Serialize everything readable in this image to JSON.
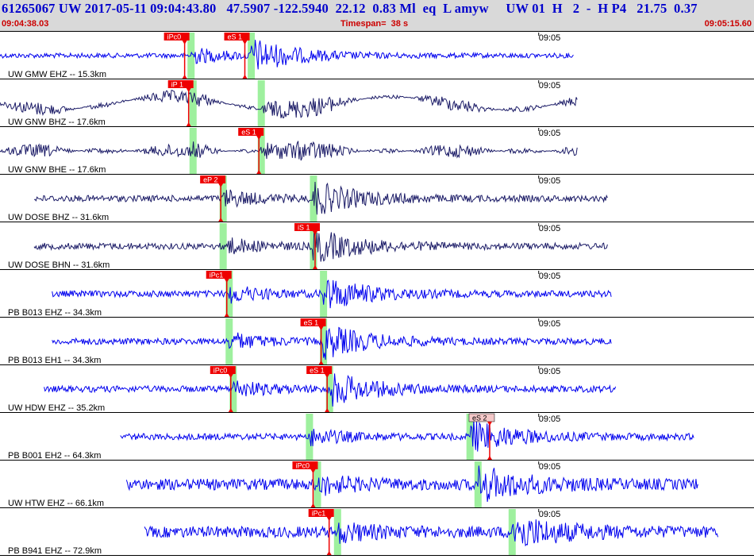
{
  "header": {
    "title": "61265067 UW 2017-05-11 09:04:43.80   47.5907 -122.5940  22.12  0.83 Ml  eq  L amyw     UW 01  H   2  -  H P4   21.75  0.37",
    "start_time": "09:04:38.03",
    "timespan": "Timespan=  38 s",
    "end_time": "09:05:15.60"
  },
  "colors": {
    "trace_blue": "#0000ee",
    "trace_navy": "#1a1a66",
    "pick_red": "#ee0000",
    "pick_band": "#9ef09e",
    "title_blue": "#0000cc",
    "time_red": "#cc0000"
  },
  "traces": [
    {
      "label": "UW GMW EHZ -- 15.3km",
      "color": "blue",
      "minute": "09:05",
      "data_start_sec": 0.0,
      "data_end_sec": 28.6,
      "amp": "high",
      "bands": [
        9.5,
        12.5
      ],
      "picks": [
        {
          "label": "iPc0",
          "sec": 9.2,
          "style": "red"
        },
        {
          "label": "eS 1",
          "sec": 12.2,
          "style": "red"
        }
      ]
    },
    {
      "label": "UW GNW BHZ -- 17.6km",
      "color": "navy",
      "minute": "09:05",
      "data_start_sec": 0.0,
      "data_end_sec": 28.8,
      "amp": "mid",
      "bands": [
        9.6,
        13.0
      ],
      "picks": [
        {
          "label": "iP 1",
          "sec": 9.4,
          "style": "red"
        }
      ]
    },
    {
      "label": "UW GNW BHE -- 17.6km",
      "color": "navy",
      "minute": "09:05",
      "data_start_sec": 0.0,
      "data_end_sec": 28.8,
      "amp": "mid",
      "bands": [
        9.6,
        13.0
      ],
      "picks": [
        {
          "label": "eS 1",
          "sec": 12.9,
          "style": "red"
        }
      ]
    },
    {
      "label": "UW DOSE BHZ -- 31.6km",
      "color": "navy",
      "minute": "09:05",
      "data_start_sec": 1.7,
      "data_end_sec": 30.3,
      "amp": "mid",
      "bands": [
        11.1,
        15.6
      ],
      "picks": [
        {
          "label": "eP 2",
          "sec": 11.0,
          "style": "red"
        }
      ]
    },
    {
      "label": "UW DOSE BHN -- 31.6km",
      "color": "navy",
      "minute": "09:05",
      "data_start_sec": 1.7,
      "data_end_sec": 30.3,
      "amp": "mid",
      "bands": [
        11.1,
        15.6
      ],
      "picks": [
        {
          "label": "iS 1",
          "sec": 15.7,
          "style": "red"
        }
      ]
    },
    {
      "label": "PB B013 EHZ -- 34.3km",
      "color": "blue",
      "minute": "09:05",
      "data_start_sec": 2.6,
      "data_end_sec": 30.5,
      "amp": "mid",
      "bands": [
        11.4,
        16.1
      ],
      "picks": [
        {
          "label": "iPc1",
          "sec": 11.3,
          "style": "red"
        }
      ]
    },
    {
      "label": "PB B013 EH1 -- 34.3km",
      "color": "blue",
      "minute": "09:05",
      "data_start_sec": 2.6,
      "data_end_sec": 30.5,
      "amp": "mid",
      "bands": [
        11.4,
        16.1
      ],
      "picks": [
        {
          "label": "eS 1",
          "sec": 16.0,
          "style": "red"
        }
      ]
    },
    {
      "label": "UW HDW EHZ -- 35.2km",
      "color": "blue",
      "minute": "09:05",
      "data_start_sec": 2.2,
      "data_end_sec": 30.7,
      "amp": "mid",
      "bands": [
        11.6,
        16.4
      ],
      "picks": [
        {
          "label": "iPc0",
          "sec": 11.5,
          "style": "red"
        },
        {
          "label": "eS 1",
          "sec": 16.3,
          "style": "red"
        }
      ]
    },
    {
      "label": "PB B001 EH2 -- 64.3km",
      "color": "blue",
      "minute": "09:05",
      "data_start_sec": 6.0,
      "data_end_sec": 34.6,
      "amp": "mid",
      "bands": [
        15.4,
        23.4
      ],
      "picks": [
        {
          "label": "eS 2",
          "sec": 24.4,
          "style": "pink"
        }
      ]
    },
    {
      "label": "UW HTW EHZ -- 66.1km",
      "color": "blue",
      "minute": "09:05",
      "data_start_sec": 6.3,
      "data_end_sec": 34.8,
      "amp": "big",
      "bands": [
        15.8,
        23.8
      ],
      "picks": [
        {
          "label": "iPc0",
          "sec": 15.6,
          "style": "red"
        }
      ]
    },
    {
      "label": "PB B941 EHZ -- 72.9km",
      "color": "blue",
      "minute": "09:05",
      "data_start_sec": 7.2,
      "data_end_sec": 35.8,
      "amp": "big",
      "bands": [
        16.8,
        25.5
      ],
      "picks": [
        {
          "label": "iPc1",
          "sec": 16.4,
          "style": "red"
        }
      ]
    }
  ]
}
